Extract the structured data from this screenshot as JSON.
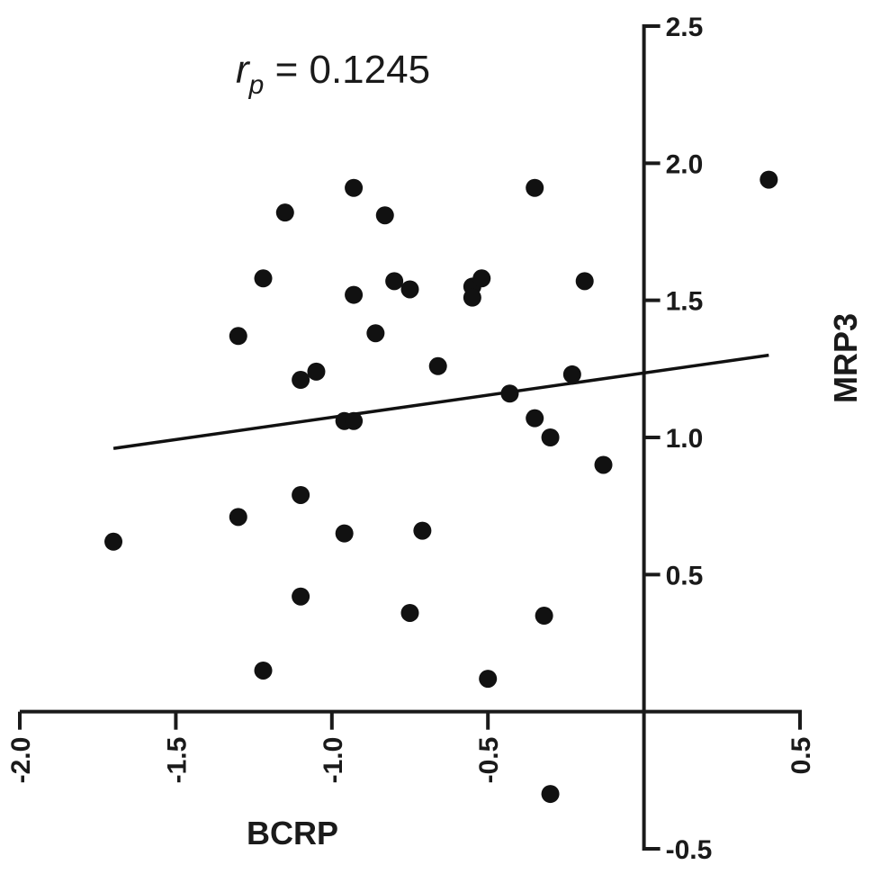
{
  "chart_data": {
    "type": "scatter",
    "annotation": {
      "symbol": "r",
      "subscript": "p",
      "text": " = 0.1245"
    },
    "xlabel": "BCRP",
    "ylabel": "MRP3",
    "xlim": [
      -2.0,
      0.5
    ],
    "ylim": [
      -0.5,
      2.5
    ],
    "x_ticks": [
      -2.0,
      -1.5,
      -1.0,
      -0.5,
      0.5
    ],
    "x_tick_labels": [
      "-2.0",
      "-1.5",
      "-1.0",
      "-0.5",
      "0.5"
    ],
    "y_ticks": [
      2.5,
      2.0,
      1.5,
      1.0,
      0.5,
      -0.5
    ],
    "y_tick_labels": [
      "2.5",
      "2.0",
      "1.5",
      "1.0",
      "0.5",
      "-0.5"
    ],
    "grid": false,
    "trendline": {
      "x": [
        -1.7,
        0.4
      ],
      "y": [
        0.96,
        1.3
      ]
    },
    "points": [
      {
        "x": -1.7,
        "y": 0.62
      },
      {
        "x": -1.3,
        "y": 1.37
      },
      {
        "x": -1.3,
        "y": 0.71
      },
      {
        "x": -1.22,
        "y": 1.58
      },
      {
        "x": -1.22,
        "y": 0.15
      },
      {
        "x": -1.15,
        "y": 1.82
      },
      {
        "x": -1.1,
        "y": 1.21
      },
      {
        "x": -1.1,
        "y": 0.79
      },
      {
        "x": -1.1,
        "y": 0.42
      },
      {
        "x": -1.05,
        "y": 1.24
      },
      {
        "x": -0.96,
        "y": 1.06
      },
      {
        "x": -0.96,
        "y": 0.65
      },
      {
        "x": -0.93,
        "y": 1.91
      },
      {
        "x": -0.93,
        "y": 1.52
      },
      {
        "x": -0.93,
        "y": 1.06
      },
      {
        "x": -0.86,
        "y": 1.38
      },
      {
        "x": -0.83,
        "y": 1.81
      },
      {
        "x": -0.8,
        "y": 1.57
      },
      {
        "x": -0.75,
        "y": 1.54
      },
      {
        "x": -0.75,
        "y": 0.36
      },
      {
        "x": -0.71,
        "y": 0.66
      },
      {
        "x": -0.66,
        "y": 1.26
      },
      {
        "x": -0.55,
        "y": 1.55
      },
      {
        "x": -0.55,
        "y": 1.51
      },
      {
        "x": -0.52,
        "y": 1.58
      },
      {
        "x": -0.5,
        "y": 0.12
      },
      {
        "x": -0.43,
        "y": 1.16
      },
      {
        "x": -0.35,
        "y": 1.91
      },
      {
        "x": -0.35,
        "y": 1.07
      },
      {
        "x": -0.32,
        "y": 0.35
      },
      {
        "x": -0.3,
        "y": 1.0
      },
      {
        "x": -0.3,
        "y": -0.3
      },
      {
        "x": -0.23,
        "y": 1.23
      },
      {
        "x": -0.19,
        "y": 1.57
      },
      {
        "x": -0.13,
        "y": 0.9
      },
      {
        "x": 0.4,
        "y": 1.94
      }
    ]
  }
}
